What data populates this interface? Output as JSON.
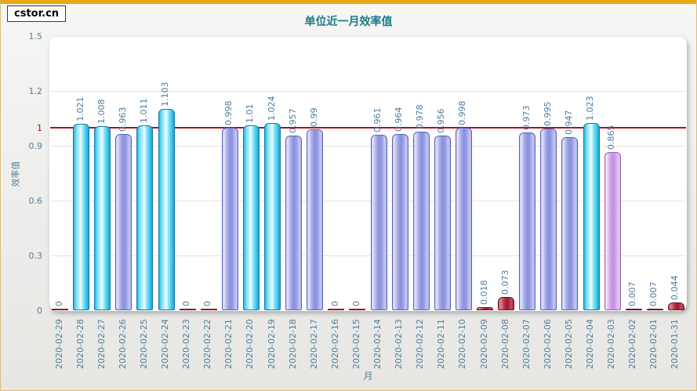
{
  "brand": {
    "label": "cstor.cn"
  },
  "colors": {
    "accent_bar": "#E9A713",
    "page_border": "#D9BE7C",
    "title": "#1B7A8C",
    "axis_label": "#55809B",
    "value_label": "#4D7CA3",
    "ref_line": "#B01020",
    "ref_tick": "#C00000",
    "gridline": "#F6DED2",
    "bar_cyan": "#45C8E8",
    "bar_purple": "#9AA0E4",
    "bar_pink": "#CF9FE3",
    "bar_red": "#B02038"
  },
  "chart_data": {
    "type": "bar",
    "title": "单位近一月效率值",
    "xlabel": "月",
    "ylabel": "效率值",
    "ylim": [
      0,
      1.5
    ],
    "grid": true,
    "legend_position": "none",
    "y_ticks": [
      {
        "label": "1.5",
        "value": 1.5
      },
      {
        "label": "1.2",
        "value": 1.2,
        "grid": true
      },
      {
        "label": "1",
        "value": 1.0,
        "ref": true
      },
      {
        "label": "0.9",
        "value": 0.9,
        "grid": true
      },
      {
        "label": "0.6",
        "value": 0.6,
        "grid": true
      },
      {
        "label": "0.3",
        "value": 0.3,
        "grid": true
      },
      {
        "label": "0",
        "value": 0.0
      }
    ],
    "ref_line": {
      "value": 1.0,
      "color": "#B01020"
    },
    "categories": [
      "2020-02-29",
      "2020-02-28",
      "2020-02-27",
      "2020-02-26",
      "2020-02-25",
      "2020-02-24",
      "2020-02-23",
      "2020-02-22",
      "2020-02-21",
      "2020-02-20",
      "2020-02-19",
      "2020-02-18",
      "2020-02-17",
      "2020-02-16",
      "2020-02-15",
      "2020-02-14",
      "2020-02-13",
      "2020-02-12",
      "2020-02-11",
      "2020-02-10",
      "2020-02-09",
      "2020-02-08",
      "2020-02-07",
      "2020-02-06",
      "2020-02-05",
      "2020-02-04",
      "2020-02-03",
      "2020-02-02",
      "2020-02-01",
      "2020-01-31"
    ],
    "values": [
      "0",
      "1.021",
      "1.008",
      "0.963",
      "1.011",
      "1.103",
      "0",
      "0",
      "0.998",
      "1.01",
      "1.024",
      "0.957",
      "0.99",
      "0",
      "0",
      "0.961",
      "0.964",
      "0.978",
      "0.956",
      "0.998",
      "0.018",
      "0.073",
      "0.973",
      "0.995",
      "0.947",
      "1.023",
      "0.865",
      "0.007",
      "0.007",
      "0.044"
    ],
    "bar_styles": [
      "red",
      "cyan",
      "cyan",
      "purple",
      "cyan",
      "cyan",
      "red",
      "red",
      "purple",
      "cyan",
      "cyan",
      "purple",
      "purple",
      "red",
      "red",
      "purple",
      "purple",
      "purple",
      "purple",
      "purple",
      "red",
      "red",
      "purple",
      "purple",
      "purple",
      "cyan",
      "pink",
      "red",
      "red",
      "red"
    ]
  }
}
